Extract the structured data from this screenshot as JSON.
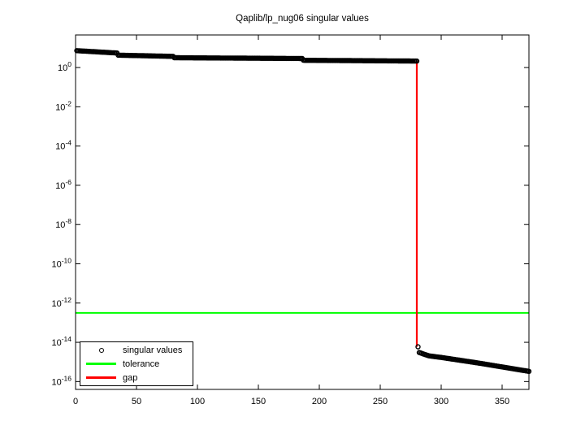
{
  "chart_data": {
    "type": "scatter",
    "title": "Qaplib/lp_nug06 singular values",
    "xlabel": "",
    "ylabel": "",
    "xlim": [
      0,
      372
    ],
    "x_ticks": [
      0,
      50,
      100,
      150,
      200,
      250,
      300,
      350
    ],
    "y_scale": "log10",
    "ylog10_lim": [
      -16.4,
      1.66
    ],
    "y_tick_exponents": [
      0,
      -2,
      -4,
      -6,
      -8,
      -10,
      -12,
      -14,
      -16
    ],
    "grid": false,
    "legend_position": "southwest",
    "series": [
      {
        "name": "singular values",
        "kind": "scatter-markers",
        "marker": "open-circle",
        "color": "#000000",
        "index_start": 1,
        "index_end": 372,
        "log10_breakpoints": [
          [
            1,
            0.86
          ],
          [
            34,
            0.74
          ],
          [
            35,
            0.63
          ],
          [
            80,
            0.57
          ],
          [
            81,
            0.5
          ],
          [
            186,
            0.46
          ],
          [
            187,
            0.37
          ],
          [
            280,
            0.33
          ],
          [
            281,
            -14.23
          ],
          [
            282,
            -14.52
          ],
          [
            290,
            -14.69
          ],
          [
            300,
            -14.77
          ],
          [
            331,
            -15.06
          ],
          [
            372,
            -15.48
          ]
        ]
      },
      {
        "name": "tolerance",
        "kind": "hline",
        "color": "#00ff00",
        "log10_value": -12.5
      },
      {
        "name": "gap",
        "kind": "vline",
        "color": "#ff0000",
        "x": 280,
        "log10_span": [
          0.33,
          -14.23
        ]
      }
    ]
  }
}
